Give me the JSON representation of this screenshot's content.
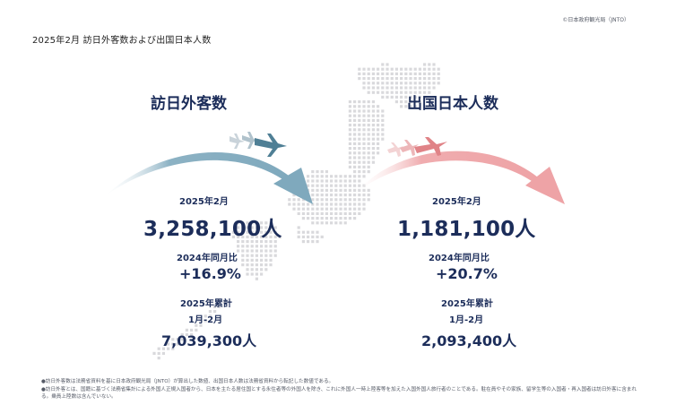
{
  "header": {
    "copyright": "©日本政府観光局（JNTO）",
    "title": "2025年2月 訪日外客数および出国日本人数"
  },
  "inbound": {
    "heading": "訪日外客数",
    "period_label": "2025年2月",
    "value": "3,258,100人",
    "yoy_label": "2024年同月比",
    "yoy_value": "+16.9%",
    "cumulative_label": "2025年累計",
    "cumulative_period": "1月-2月",
    "cumulative_value": "7,039,300人",
    "arrow_color": "#7fa9bd",
    "plane_color": "#4f7f95"
  },
  "outbound": {
    "heading": "出国日本人数",
    "period_label": "2025年2月",
    "value": "1,181,100人",
    "yoy_label": "2024年同月比",
    "yoy_value": "+20.7%",
    "cumulative_label": "2025年累計",
    "cumulative_period": "1月-2月",
    "cumulative_value": "2,093,400人",
    "arrow_color": "#eea3a6",
    "plane_color": "#e08387"
  },
  "notes": [
    "●訪日外客数は法務省資料を基に日本政府観光局（JNTO）が算出した数値、出国日本人数は法務省資料から転記した数値である。",
    "●訪日外客とは、国籍に基づく法務省集計による外国人正規入国者から、日本を主たる居住国とする永住者等の外国人を除き、これに外国人一時上陸客等を加えた入国外国人旅行者のことである。駐在員やその家族、留学生等の入国者・再入国者は訪日外客に含まれる。乗員上陸数は含んでいない。"
  ],
  "map_color": "#d9d9dc"
}
